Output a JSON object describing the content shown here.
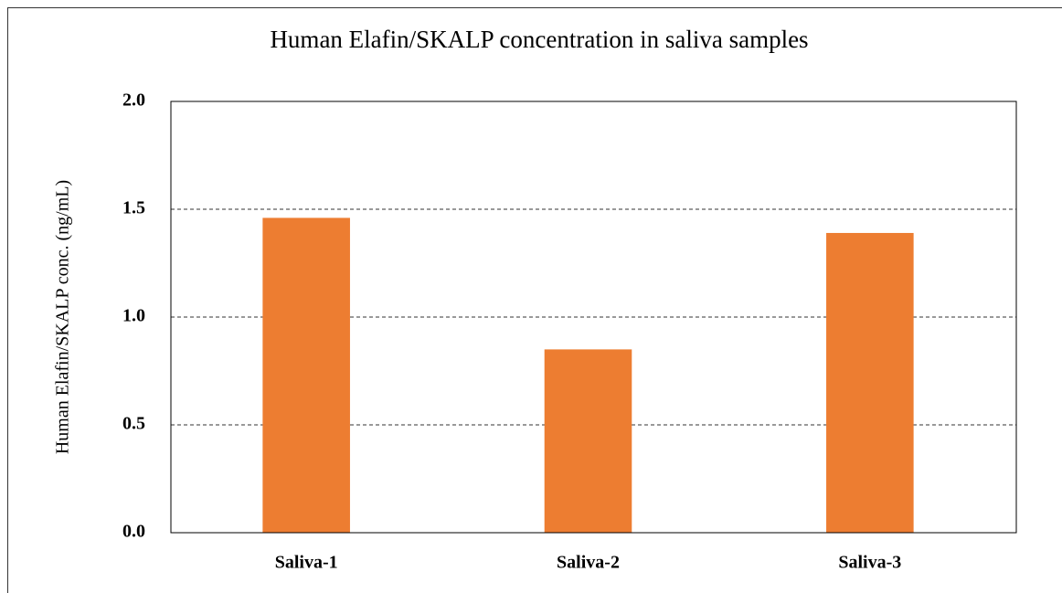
{
  "chart_data": {
    "type": "bar",
    "title": "Human Elafin/SKALP concentration in saliva samples",
    "y_label": "Human Elafin/SKALP conc. (ng/mL)",
    "categories": [
      "Saliva-1",
      "Saliva-2",
      "Saliva-3"
    ],
    "values": [
      1.46,
      0.85,
      1.39
    ],
    "color": "#ed7d31",
    "ylim": [
      0,
      2
    ],
    "yticks": [
      {
        "value": 0,
        "label": "0.0"
      },
      {
        "value": 0.5,
        "label": "0.5"
      },
      {
        "value": 1,
        "label": "1.0"
      },
      {
        "value": 1.5,
        "label": "1.5"
      },
      {
        "value": 2,
        "label": "2.0"
      }
    ],
    "grid": true
  }
}
